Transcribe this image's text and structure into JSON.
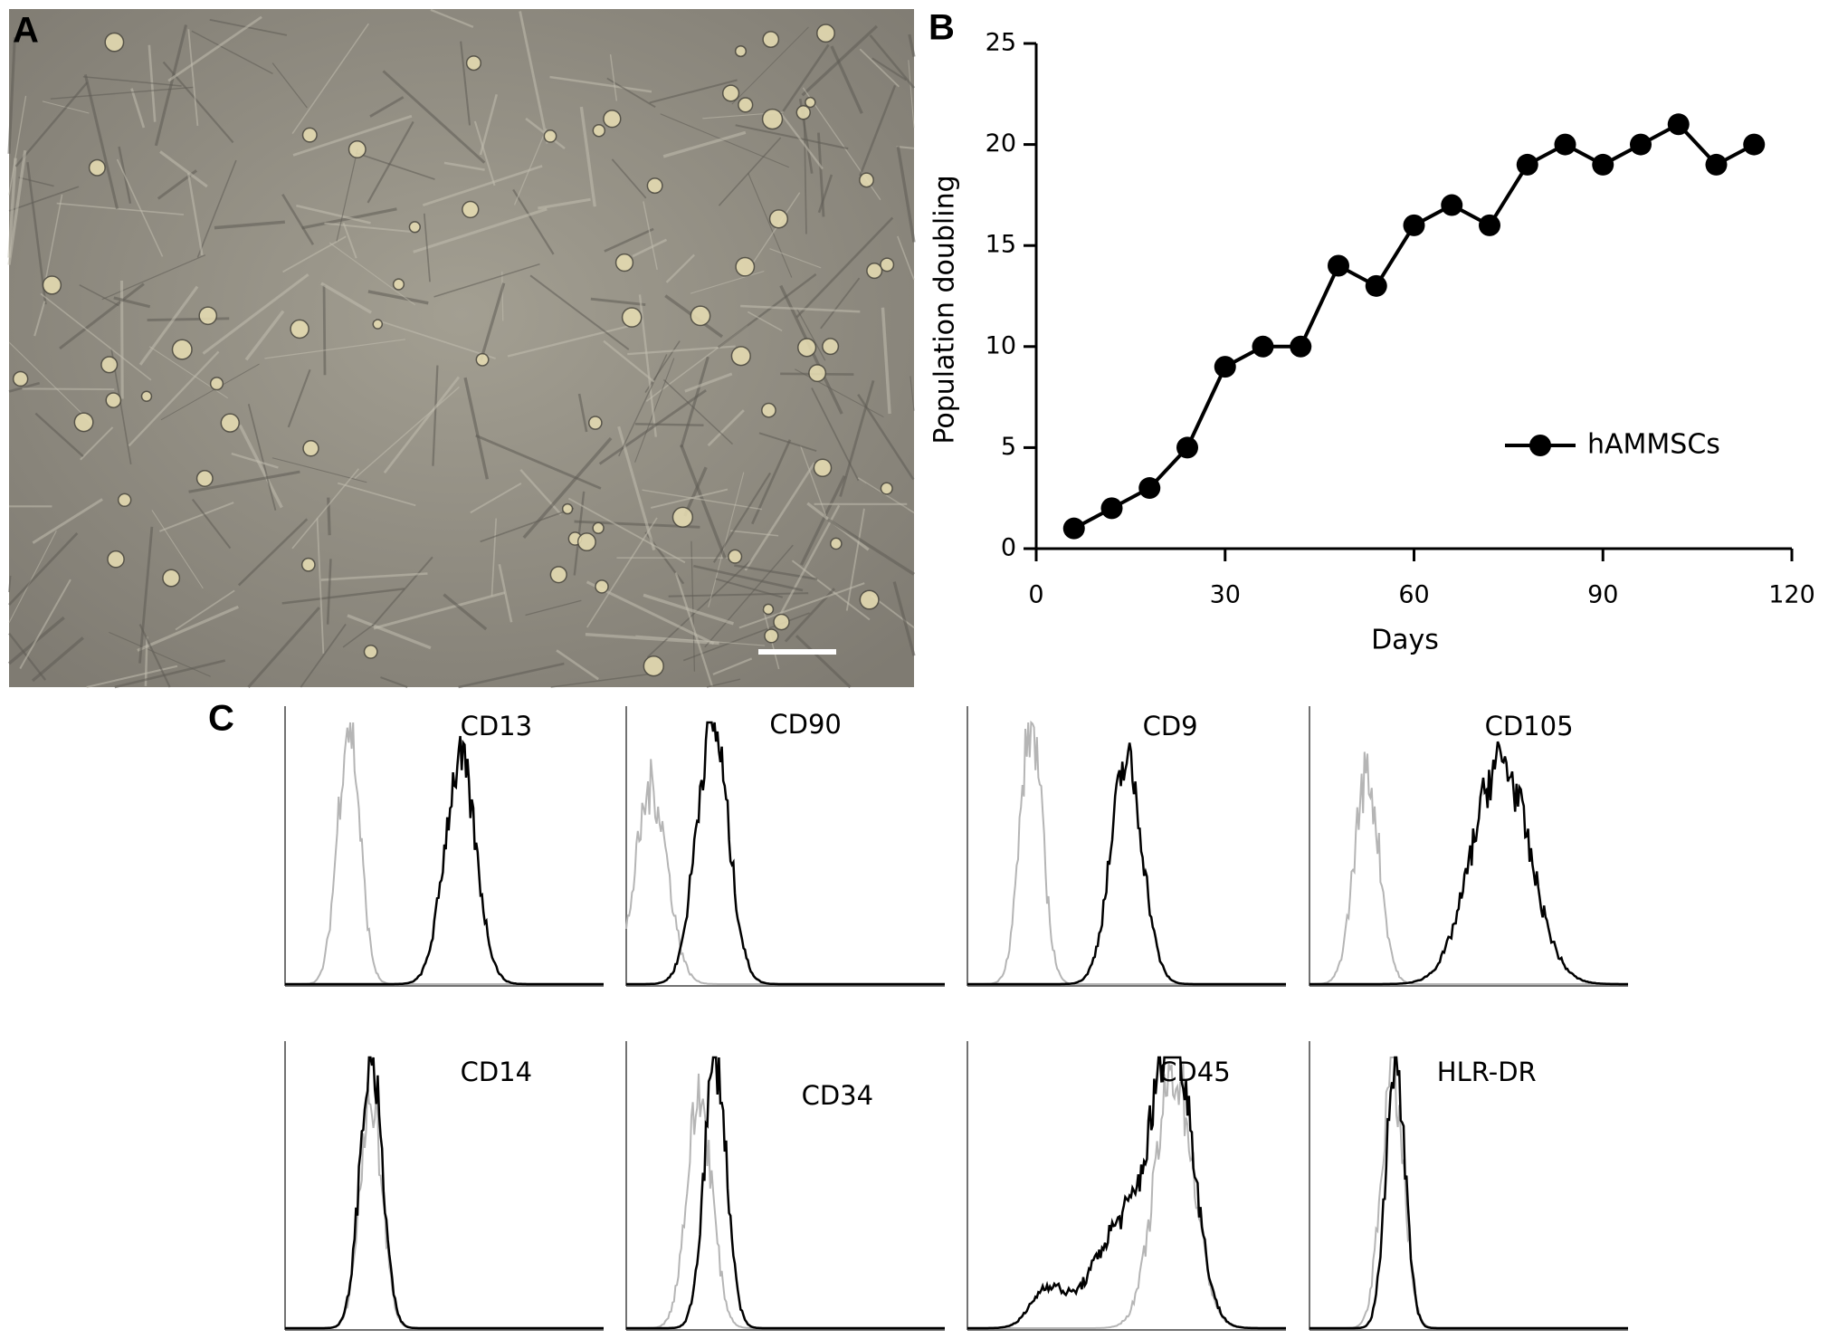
{
  "micrograph": {
    "panel_label": "A"
  },
  "chart_data": {
    "type": "line",
    "panel_label": "B",
    "x_label": "Days",
    "y_label": "Population doubling",
    "x": [
      6,
      12,
      18,
      24,
      30,
      36,
      42,
      48,
      54,
      60,
      66,
      72,
      78,
      84,
      90,
      96,
      102,
      108,
      114
    ],
    "series": [
      {
        "name": "hAMMSCs",
        "color": "#000000",
        "values": [
          1,
          2,
          3,
          5,
          9,
          10,
          10,
          14,
          13,
          16,
          17,
          16,
          19,
          20,
          19,
          20,
          21,
          19,
          20
        ]
      }
    ],
    "xlim": [
      0,
      120
    ],
    "xticks": [
      0,
      30,
      60,
      90,
      120
    ],
    "ylim": [
      0,
      25
    ],
    "yticks": [
      0,
      5,
      10,
      15,
      20,
      25
    ],
    "legend": "lower right"
  },
  "flow_cytometry": {
    "panel_label": "C",
    "markers": [
      "CD13",
      "CD90",
      "CD9",
      "CD105",
      "CD14",
      "CD34",
      "CD45",
      "HLR-DR"
    ]
  }
}
